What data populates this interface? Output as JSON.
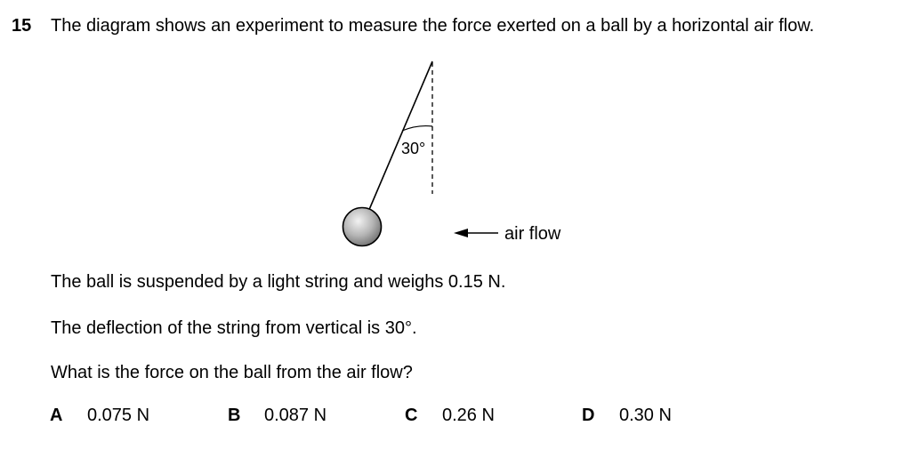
{
  "question": {
    "number": "15",
    "stem": "The diagram shows an experiment to measure the force exerted on a ball by a horizontal air flow."
  },
  "diagram": {
    "angle_label": "30°",
    "airflow_label": "air flow"
  },
  "paragraphs": {
    "p1": "The ball is suspended by a light string and weighs 0.15 N.",
    "p2": "The deflection of the string from vertical is 30°.",
    "p3": "What is the force on the ball from the air flow?"
  },
  "options": [
    {
      "letter": "A",
      "value": "0.075 N"
    },
    {
      "letter": "B",
      "value": "0.087 N"
    },
    {
      "letter": "C",
      "value": "0.26 N"
    },
    {
      "letter": "D",
      "value": "0.30 N"
    }
  ]
}
